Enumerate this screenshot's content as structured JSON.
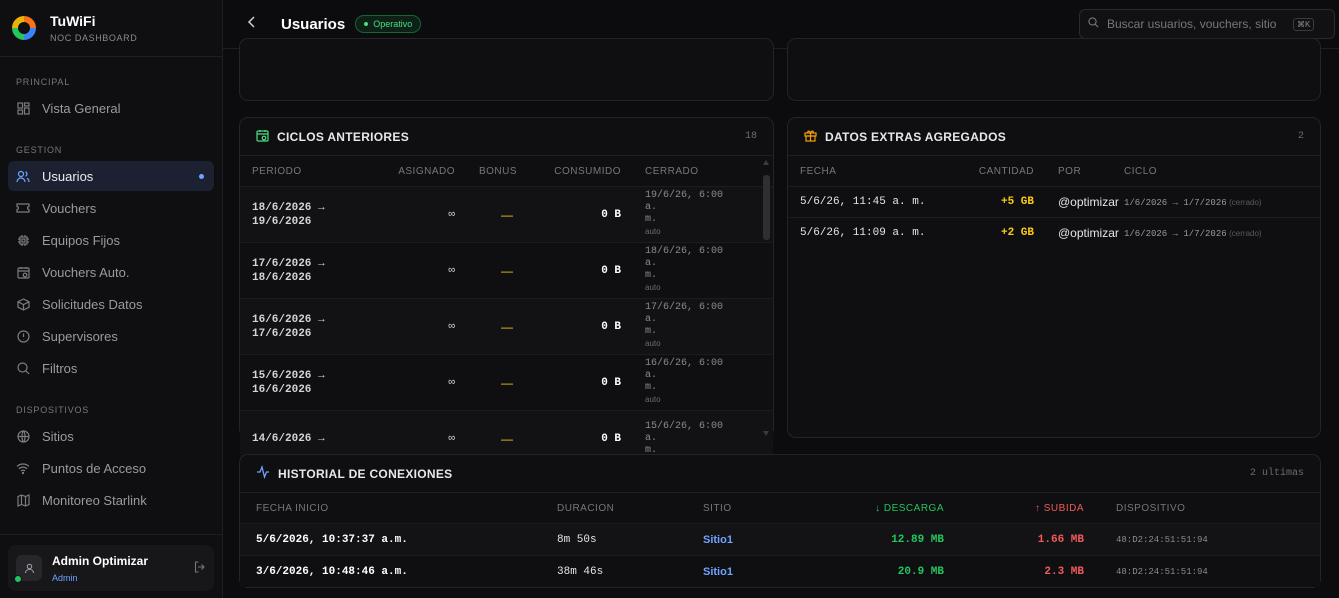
{
  "brand": {
    "title": "TuWiFi",
    "subtitle": "NOC DASHBOARD"
  },
  "nav": {
    "principal_label": "PRINCIPAL",
    "principal": [
      {
        "label": "Vista General",
        "icon": "grid-icon"
      }
    ],
    "gestion_label": "GESTION",
    "gestion": [
      {
        "label": "Usuarios",
        "icon": "users-icon"
      },
      {
        "label": "Vouchers",
        "icon": "ticket-icon"
      },
      {
        "label": "Equipos Fijos",
        "icon": "chip-icon"
      },
      {
        "label": "Vouchers Auto.",
        "icon": "calendar-icon"
      },
      {
        "label": "Solicitudes Datos",
        "icon": "package-icon"
      },
      {
        "label": "Supervisores",
        "icon": "shield-icon"
      },
      {
        "label": "Filtros",
        "icon": "search-icon"
      }
    ],
    "dispositivos_label": "DISPOSITIVOS",
    "dispositivos": [
      {
        "label": "Sitios",
        "icon": "globe-icon"
      },
      {
        "label": "Puntos de Acceso",
        "icon": "wifi-icon"
      },
      {
        "label": "Monitoreo Starlink",
        "icon": "map-icon"
      }
    ]
  },
  "user": {
    "name": "Admin Optimizar",
    "role": "Admin"
  },
  "header": {
    "title": "Usuarios",
    "status": "Operativo",
    "search_placeholder": "Buscar usuarios, vouchers, sitio",
    "shortcut": "⌘K"
  },
  "ciclos": {
    "title": "CICLOS ANTERIORES",
    "count": "18",
    "columns": [
      "PERIODO",
      "ASIGNADO",
      "BONUS",
      "CONSUMIDO",
      "CERRADO"
    ],
    "rows": [
      {
        "p1": "18/6/2026 →",
        "p2": "19/6/2026",
        "asignado": "∞",
        "bonus": "—",
        "consumido": "0 B",
        "c1": "19/6/26, 6:00 a.",
        "c2": "m.",
        "c3": "auto"
      },
      {
        "p1": "17/6/2026 →",
        "p2": "18/6/2026",
        "asignado": "∞",
        "bonus": "—",
        "consumido": "0 B",
        "c1": "18/6/26, 6:00 a.",
        "c2": "m.",
        "c3": "auto"
      },
      {
        "p1": "16/6/2026 →",
        "p2": "17/6/2026",
        "asignado": "∞",
        "bonus": "—",
        "consumido": "0 B",
        "c1": "17/6/26, 6:00 a.",
        "c2": "m.",
        "c3": "auto"
      },
      {
        "p1": "15/6/2026 →",
        "p2": "16/6/2026",
        "asignado": "∞",
        "bonus": "—",
        "consumido": "0 B",
        "c1": "16/6/26, 6:00 a.",
        "c2": "m.",
        "c3": "auto"
      },
      {
        "p1": "14/6/2026 →",
        "p2": "",
        "asignado": "∞",
        "bonus": "—",
        "consumido": "0 B",
        "c1": "15/6/26, 6:00 a.",
        "c2": "m.",
        "c3": ""
      }
    ]
  },
  "extras": {
    "title": "DATOS EXTRAS AGREGADOS",
    "count": "2",
    "columns": [
      "FECHA",
      "CANTIDAD",
      "POR",
      "CICLO"
    ],
    "rows": [
      {
        "fecha": "5/6/26, 11:45 a. m.",
        "cantidad": "+5 GB",
        "por": "@optimizar",
        "ciclo": "1/6/2026 → 1/7/2026",
        "estado": "(cerrado)"
      },
      {
        "fecha": "5/6/26, 11:09 a. m.",
        "cantidad": "+2 GB",
        "por": "@optimizar",
        "ciclo": "1/6/2026 → 1/7/2026",
        "estado": "(cerrado)"
      }
    ]
  },
  "historial": {
    "title": "HISTORIAL DE CONEXIONES",
    "count": "2 ultimas",
    "columns": {
      "inicio": "FECHA INICIO",
      "duracion": "DURACION",
      "sitio": "SITIO",
      "descarga": "↓ DESCARGA",
      "subida": "↑ SUBIDA",
      "dispositivo": "DISPOSITIVO"
    },
    "rows": [
      {
        "inicio": "5/6/2026, 10:37:37 a.m.",
        "duracion": "8m 50s",
        "sitio": "Sitio1",
        "descarga": "12.89 MB",
        "subida": "1.66 MB",
        "dispositivo": "48:D2:24:51:51:94"
      },
      {
        "inicio": "3/6/2026, 10:48:46 a.m.",
        "duracion": "38m 46s",
        "sitio": "Sitio1",
        "descarga": "20.9 MB",
        "subida": "2.3 MB",
        "dispositivo": "48:D2:24:51:51:94"
      }
    ]
  },
  "colors": {
    "accent": "#6ea4ff",
    "green": "#22c55e",
    "red": "#f05a5a",
    "yellow": "#facc15"
  }
}
